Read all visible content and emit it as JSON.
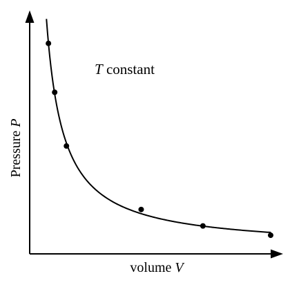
{
  "chart_data": {
    "type": "line",
    "title": "",
    "annotation": {
      "italic": "T",
      "text": " constant"
    },
    "xlabel": {
      "text": "volume ",
      "italic": "V"
    },
    "ylabel": {
      "text": "Pressure ",
      "italic": "P"
    },
    "axis_ticks": "none",
    "grid": false,
    "legend": "none",
    "xlim": [
      0,
      1
    ],
    "ylim": [
      0,
      1
    ],
    "series": [
      {
        "curve": "hyperbola",
        "points": [
          {
            "x": 0.075,
            "y": 0.882
          },
          {
            "x": 0.1,
            "y": 0.677
          },
          {
            "x": 0.147,
            "y": 0.452
          },
          {
            "x": 0.446,
            "y": 0.186
          },
          {
            "x": 0.693,
            "y": 0.117
          },
          {
            "x": 0.964,
            "y": 0.078
          }
        ]
      }
    ],
    "colors": {
      "curve": "#000000",
      "axes": "#000000",
      "background": "#ffffff"
    }
  }
}
